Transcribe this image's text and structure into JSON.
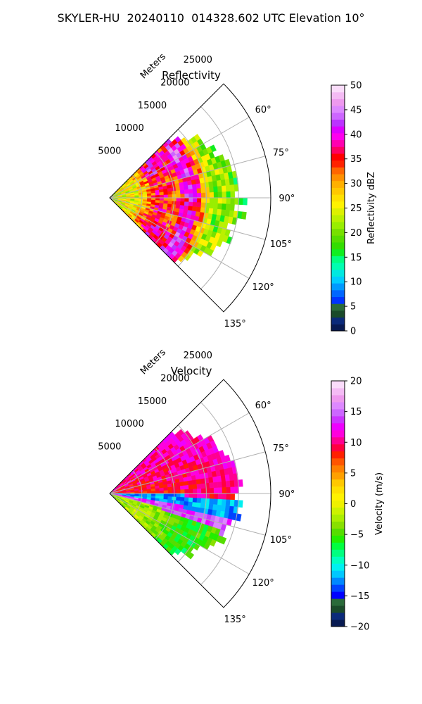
{
  "figure": {
    "title": "SKYLER-HU  20240110  014328.602 UTC Elevation 10°"
  },
  "chart_data": [
    {
      "type": "polar-sector",
      "title": "Reflectivity",
      "range_label": "Meters",
      "range_ticks": [
        5000,
        10000,
        15000,
        20000,
        25000
      ],
      "range_tick_labels": [
        "5000",
        "10000",
        "15000",
        "20000",
        "25000"
      ],
      "rmax": 25000,
      "azimuth_range": [
        45,
        135
      ],
      "azimuth_ticks": [
        60,
        75,
        90,
        105,
        120,
        135
      ],
      "azimuth_tick_labels": [
        "60°",
        "75°",
        "90°",
        "105°",
        "120°",
        "135°"
      ],
      "grid": true,
      "colorbar": {
        "label": "Reflectivity dBZ",
        "range": [
          0,
          50
        ],
        "ticks": [
          0,
          5,
          10,
          15,
          20,
          25,
          30,
          35,
          40,
          45,
          50
        ],
        "tick_labels": [
          "0",
          "5",
          "10",
          "15",
          "20",
          "25",
          "30",
          "35",
          "40",
          "45",
          "50"
        ],
        "colors": [
          "#081a52",
          "#0b2a7a",
          "#1a4a2a",
          "#2a6a3a",
          "#0033ff",
          "#0066ff",
          "#0099ff",
          "#00ccff",
          "#00e8e0",
          "#00ffb0",
          "#00ff80",
          "#10ee20",
          "#33dd00",
          "#55dd00",
          "#77e000",
          "#99ee00",
          "#bbf000",
          "#ddf000",
          "#fff200",
          "#ffe000",
          "#ffc800",
          "#ffb000",
          "#ff9000",
          "#ff6600",
          "#ff2200",
          "#ff0000",
          "#ff0060",
          "#ff00b0",
          "#ff00ee",
          "#dd00ff",
          "#bb33ff",
          "#cc66ff",
          "#dd88ff",
          "#ee99ee",
          "#f4bbf4",
          "#fadcfa"
        ]
      },
      "field_profile": {
        "center_azimuth": 90,
        "max_range": 22000,
        "ring_features": [
          {
            "range": 8000,
            "value": 36
          },
          {
            "range": 12500,
            "value": 40
          },
          {
            "range": 17500,
            "value": 21
          }
        ]
      }
    },
    {
      "type": "polar-sector",
      "title": "Velocity",
      "range_label": "Meters",
      "range_ticks": [
        5000,
        10000,
        15000,
        20000,
        25000
      ],
      "range_tick_labels": [
        "5000",
        "10000",
        "15000",
        "20000",
        "25000"
      ],
      "rmax": 25000,
      "azimuth_range": [
        45,
        135
      ],
      "azimuth_ticks": [
        60,
        75,
        90,
        105,
        120,
        135
      ],
      "azimuth_tick_labels": [
        "60°",
        "75°",
        "90°",
        "105°",
        "120°",
        "135°"
      ],
      "grid": true,
      "colorbar": {
        "label": "Velocity (m/s)",
        "range": [
          -20,
          20
        ],
        "ticks": [
          -20,
          -15,
          -10,
          -5,
          0,
          5,
          10,
          15,
          20
        ],
        "tick_labels": [
          "−20",
          "−15",
          "−10",
          "−5",
          "0",
          "5",
          "10",
          "15",
          "20"
        ],
        "colors": [
          "#081a52",
          "#0b2a7a",
          "#1a4a2a",
          "#2a6a3a",
          "#0000ff",
          "#0044ff",
          "#0088ff",
          "#00c8ff",
          "#00f0f0",
          "#00ffc0",
          "#00ff80",
          "#00ff40",
          "#22ee00",
          "#55dd00",
          "#88e000",
          "#aaee00",
          "#ccf200",
          "#eef000",
          "#fff200",
          "#ffe000",
          "#ffc800",
          "#ffa000",
          "#ff8000",
          "#ff5500",
          "#ff2000",
          "#ff0040",
          "#ff0090",
          "#ff00dd",
          "#ee00ff",
          "#cc33ff",
          "#cc66ff",
          "#dd88ff",
          "#ee99ee",
          "#f4bbf4",
          "#fadcfa"
        ]
      },
      "field_profile": {
        "center_azimuth": 90,
        "max_range": 22000,
        "north_side_value": 8,
        "south_side_value": -4,
        "core_value": -12,
        "fold_band_value": 14
      }
    }
  ]
}
